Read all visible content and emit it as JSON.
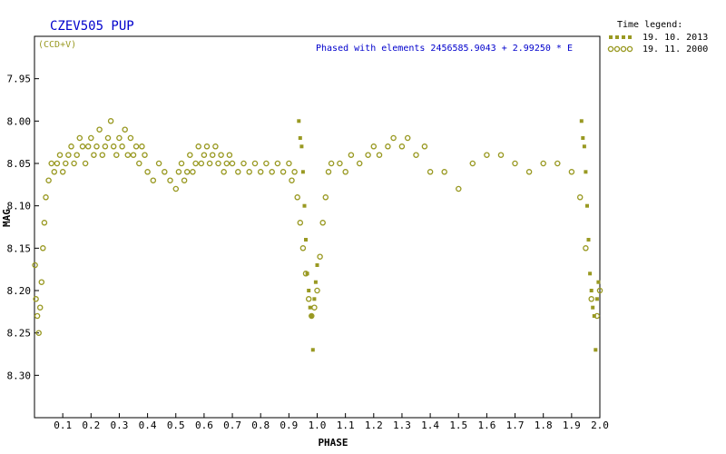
{
  "chart_data": {
    "type": "scatter",
    "title": "CZEV505 PUP",
    "filter_label": "(CCD+V)",
    "elements_note": "Phased with elements 2456585.9043 + 2.99250 * E",
    "xlabel": "PHASE",
    "ylabel": "MAG",
    "xlim": [
      0.0,
      2.0
    ],
    "ylim_inverted": [
      7.9,
      8.35
    ],
    "x_ticks": [
      "0.1",
      "0.2",
      "0.3",
      "0.4",
      "0.5",
      "0.6",
      "0.7",
      "0.8",
      "0.9",
      "1.0",
      "1.1",
      "1.2",
      "1.3",
      "1.4",
      "1.5",
      "1.6",
      "1.7",
      "1.8",
      "1.9",
      "2.0"
    ],
    "y_ticks": [
      "7.95",
      "8.00",
      "8.05",
      "8.10",
      "8.15",
      "8.20",
      "8.25",
      "8.30"
    ],
    "grid": false,
    "point_color": "#999922",
    "legend_title": "Time legend:",
    "legend_position": "right, outside plot",
    "series": [
      {
        "name": "19. 10. 2013",
        "marker": "filled-square",
        "points": [
          [
            0.935,
            8.0
          ],
          [
            0.94,
            8.02
          ],
          [
            0.945,
            8.03
          ],
          [
            0.95,
            8.06
          ],
          [
            0.955,
            8.1
          ],
          [
            0.96,
            8.14
          ],
          [
            0.965,
            8.18
          ],
          [
            0.97,
            8.2
          ],
          [
            0.975,
            8.22
          ],
          [
            0.98,
            8.23
          ],
          [
            0.985,
            8.27
          ],
          [
            0.99,
            8.21
          ],
          [
            0.995,
            8.19
          ],
          [
            1.0,
            8.17
          ],
          [
            1.935,
            8.0
          ],
          [
            1.94,
            8.02
          ],
          [
            1.945,
            8.03
          ],
          [
            1.95,
            8.06
          ],
          [
            1.955,
            8.1
          ],
          [
            1.96,
            8.14
          ],
          [
            1.965,
            8.18
          ],
          [
            1.97,
            8.2
          ],
          [
            1.975,
            8.22
          ],
          [
            1.98,
            8.23
          ],
          [
            1.985,
            8.27
          ],
          [
            1.99,
            8.21
          ],
          [
            1.995,
            8.19
          ]
        ]
      },
      {
        "name": "19. 11. 2000",
        "marker": "open-circle",
        "points": [
          [
            0.002,
            8.17
          ],
          [
            0.005,
            8.21
          ],
          [
            0.01,
            8.23
          ],
          [
            0.015,
            8.25
          ],
          [
            0.02,
            8.22
          ],
          [
            0.025,
            8.19
          ],
          [
            0.03,
            8.15
          ],
          [
            0.035,
            8.12
          ],
          [
            0.04,
            8.09
          ],
          [
            0.05,
            8.07
          ],
          [
            0.06,
            8.05
          ],
          [
            0.07,
            8.06
          ],
          [
            0.08,
            8.05
          ],
          [
            0.09,
            8.04
          ],
          [
            0.1,
            8.06
          ],
          [
            0.11,
            8.05
          ],
          [
            0.12,
            8.04
          ],
          [
            0.13,
            8.03
          ],
          [
            0.14,
            8.05
          ],
          [
            0.15,
            8.04
          ],
          [
            0.16,
            8.02
          ],
          [
            0.17,
            8.03
          ],
          [
            0.18,
            8.05
          ],
          [
            0.19,
            8.03
          ],
          [
            0.2,
            8.02
          ],
          [
            0.21,
            8.04
          ],
          [
            0.22,
            8.03
          ],
          [
            0.23,
            8.01
          ],
          [
            0.24,
            8.04
          ],
          [
            0.25,
            8.03
          ],
          [
            0.26,
            8.02
          ],
          [
            0.27,
            8.0
          ],
          [
            0.28,
            8.03
          ],
          [
            0.29,
            8.04
          ],
          [
            0.3,
            8.02
          ],
          [
            0.31,
            8.03
          ],
          [
            0.32,
            8.01
          ],
          [
            0.33,
            8.04
          ],
          [
            0.34,
            8.02
          ],
          [
            0.35,
            8.04
          ],
          [
            0.36,
            8.03
          ],
          [
            0.37,
            8.05
          ],
          [
            0.38,
            8.03
          ],
          [
            0.39,
            8.04
          ],
          [
            0.4,
            8.06
          ],
          [
            0.42,
            8.07
          ],
          [
            0.44,
            8.05
          ],
          [
            0.46,
            8.06
          ],
          [
            0.48,
            8.07
          ],
          [
            0.5,
            8.08
          ],
          [
            0.51,
            8.06
          ],
          [
            0.52,
            8.05
          ],
          [
            0.53,
            8.07
          ],
          [
            0.54,
            8.06
          ],
          [
            0.55,
            8.04
          ],
          [
            0.56,
            8.06
          ],
          [
            0.57,
            8.05
          ],
          [
            0.58,
            8.03
          ],
          [
            0.59,
            8.05
          ],
          [
            0.6,
            8.04
          ],
          [
            0.61,
            8.03
          ],
          [
            0.62,
            8.05
          ],
          [
            0.63,
            8.04
          ],
          [
            0.64,
            8.03
          ],
          [
            0.65,
            8.05
          ],
          [
            0.66,
            8.04
          ],
          [
            0.67,
            8.06
          ],
          [
            0.68,
            8.05
          ],
          [
            0.69,
            8.04
          ],
          [
            0.7,
            8.05
          ],
          [
            0.72,
            8.06
          ],
          [
            0.74,
            8.05
          ],
          [
            0.76,
            8.06
          ],
          [
            0.78,
            8.05
          ],
          [
            0.8,
            8.06
          ],
          [
            0.82,
            8.05
          ],
          [
            0.84,
            8.06
          ],
          [
            0.86,
            8.05
          ],
          [
            0.88,
            8.06
          ],
          [
            0.9,
            8.05
          ],
          [
            0.91,
            8.07
          ],
          [
            0.92,
            8.06
          ],
          [
            0.93,
            8.09
          ],
          [
            0.94,
            8.12
          ],
          [
            0.95,
            8.15
          ],
          [
            0.96,
            8.18
          ],
          [
            0.97,
            8.21
          ],
          [
            0.98,
            8.23
          ],
          [
            0.99,
            8.22
          ],
          [
            1.0,
            8.2
          ],
          [
            1.01,
            8.16
          ],
          [
            1.02,
            8.12
          ],
          [
            1.03,
            8.09
          ],
          [
            1.04,
            8.06
          ],
          [
            1.05,
            8.05
          ],
          [
            1.08,
            8.05
          ],
          [
            1.1,
            8.06
          ],
          [
            1.12,
            8.04
          ],
          [
            1.15,
            8.05
          ],
          [
            1.18,
            8.04
          ],
          [
            1.2,
            8.03
          ],
          [
            1.22,
            8.04
          ],
          [
            1.25,
            8.03
          ],
          [
            1.27,
            8.02
          ],
          [
            1.3,
            8.03
          ],
          [
            1.32,
            8.02
          ],
          [
            1.35,
            8.04
          ],
          [
            1.38,
            8.03
          ],
          [
            1.4,
            8.06
          ],
          [
            1.45,
            8.06
          ],
          [
            1.5,
            8.08
          ],
          [
            1.55,
            8.05
          ],
          [
            1.6,
            8.04
          ],
          [
            1.65,
            8.04
          ],
          [
            1.7,
            8.05
          ],
          [
            1.75,
            8.06
          ],
          [
            1.8,
            8.05
          ],
          [
            1.85,
            8.05
          ],
          [
            1.9,
            8.06
          ],
          [
            1.93,
            8.09
          ],
          [
            1.95,
            8.15
          ],
          [
            1.97,
            8.21
          ],
          [
            1.99,
            8.23
          ],
          [
            2.0,
            8.2
          ]
        ]
      }
    ]
  }
}
